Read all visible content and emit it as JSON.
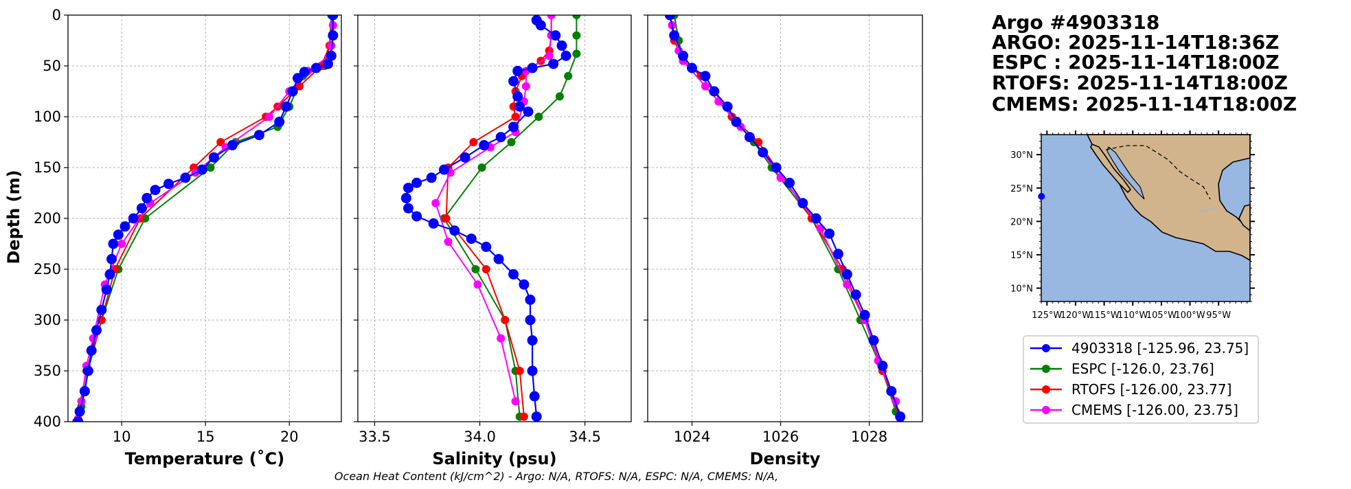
{
  "chart_data": {
    "type": "line",
    "colors": {
      "argo": "#0000ff",
      "espc": "#008000",
      "rtofs": "#ff0000",
      "cmems": "#ff00ff",
      "ocean": "#98b7e1",
      "land": "#d2b48c"
    },
    "info_lines": [
      "Argo #4903318",
      "ARGO: 2025-11-14T18:36Z",
      "ESPC : 2025-11-14T18:00Z",
      "RTOFS: 2025-11-14T18:00Z",
      "CMEMS: 2025-11-14T18:00Z"
    ],
    "footer": "Ocean Heat Content (kJ/cm^2) - Argo: N/A,  RTOFS: N/A,  ESPC: N/A,  CMEMS: N/A,",
    "ylabel": "Depth (m)",
    "ylim": [
      0,
      400
    ],
    "yticks": [
      0,
      50,
      100,
      150,
      200,
      250,
      300,
      350,
      400
    ],
    "panels": [
      {
        "key": "temp",
        "xlabel": "Temperature (˚C)",
        "xlim": [
          6.8,
          23.1
        ],
        "xticks": [
          10,
          15,
          20
        ],
        "argo": [
          [
            22.6,
            0
          ],
          [
            22.6,
            20
          ],
          [
            22.5,
            40
          ],
          [
            22.3,
            48
          ],
          [
            21.6,
            52
          ],
          [
            20.9,
            56
          ],
          [
            20.5,
            62
          ],
          [
            20.2,
            75
          ],
          [
            19.8,
            90
          ],
          [
            19.4,
            105
          ],
          [
            18.2,
            118
          ],
          [
            16.6,
            128
          ],
          [
            15.5,
            140
          ],
          [
            14.8,
            152
          ],
          [
            13.8,
            160
          ],
          [
            12.8,
            166
          ],
          [
            12.0,
            172
          ],
          [
            11.5,
            180
          ],
          [
            11.2,
            190
          ],
          [
            10.7,
            200
          ],
          [
            10.2,
            208
          ],
          [
            9.8,
            216
          ],
          [
            9.5,
            225
          ],
          [
            9.4,
            240
          ],
          [
            9.3,
            255
          ],
          [
            9.1,
            270
          ],
          [
            8.8,
            290
          ],
          [
            8.5,
            310
          ],
          [
            8.2,
            330
          ],
          [
            8.0,
            350
          ],
          [
            7.8,
            370
          ],
          [
            7.5,
            390
          ],
          [
            7.4,
            400
          ]
        ],
        "espc": [
          [
            22.5,
            0
          ],
          [
            22.4,
            30
          ],
          [
            22.1,
            50
          ],
          [
            20.8,
            60
          ],
          [
            20.0,
            90
          ],
          [
            19.3,
            110
          ],
          [
            16.8,
            125
          ],
          [
            15.3,
            150
          ],
          [
            11.4,
            200
          ],
          [
            9.8,
            250
          ],
          [
            8.8,
            300
          ],
          [
            8.0,
            350
          ],
          [
            7.6,
            385
          ]
        ],
        "rtofs": [
          [
            22.6,
            0
          ],
          [
            22.4,
            30
          ],
          [
            21.9,
            50
          ],
          [
            20.6,
            70
          ],
          [
            19.3,
            90
          ],
          [
            18.6,
            100
          ],
          [
            15.9,
            125
          ],
          [
            14.3,
            150
          ],
          [
            11.1,
            200
          ],
          [
            9.6,
            250
          ],
          [
            8.8,
            300
          ],
          [
            7.9,
            350
          ],
          [
            7.3,
            400
          ]
        ],
        "cmems": [
          [
            22.6,
            0
          ],
          [
            22.6,
            10
          ],
          [
            22.6,
            20
          ],
          [
            22.5,
            30
          ],
          [
            22.4,
            40
          ],
          [
            21.1,
            55
          ],
          [
            20.0,
            75
          ],
          [
            18.8,
            100
          ],
          [
            16.2,
            130
          ],
          [
            14.4,
            155
          ],
          [
            11.7,
            185
          ],
          [
            10.0,
            225
          ],
          [
            9.0,
            265
          ],
          [
            8.3,
            318
          ],
          [
            7.9,
            345
          ],
          [
            7.6,
            380
          ],
          [
            7.4,
            397
          ]
        ]
      },
      {
        "key": "sal",
        "xlabel": "Salinity (psu)",
        "xlim": [
          33.42,
          34.72
        ],
        "xticks": [
          33.5,
          34.0,
          34.5
        ],
        "xticklabels": [
          "33.5",
          "34.0",
          "34.5"
        ],
        "argo": [
          [
            34.27,
            5
          ],
          [
            34.29,
            10
          ],
          [
            34.36,
            20
          ],
          [
            34.39,
            30
          ],
          [
            34.41,
            40
          ],
          [
            34.35,
            48
          ],
          [
            34.25,
            52
          ],
          [
            34.18,
            55
          ],
          [
            34.16,
            65
          ],
          [
            34.18,
            80
          ],
          [
            34.19,
            90
          ],
          [
            34.23,
            95
          ],
          [
            34.16,
            110
          ],
          [
            34.1,
            120
          ],
          [
            34.02,
            128
          ],
          [
            33.93,
            140
          ],
          [
            33.83,
            152
          ],
          [
            33.77,
            160
          ],
          [
            33.7,
            165
          ],
          [
            33.66,
            170
          ],
          [
            33.65,
            180
          ],
          [
            33.66,
            190
          ],
          [
            33.7,
            198
          ],
          [
            33.78,
            205
          ],
          [
            33.88,
            212
          ],
          [
            33.96,
            220
          ],
          [
            34.03,
            228
          ],
          [
            34.09,
            240
          ],
          [
            34.16,
            255
          ],
          [
            34.21,
            265
          ],
          [
            34.24,
            280
          ],
          [
            34.24,
            300
          ],
          [
            34.25,
            320
          ],
          [
            34.25,
            350
          ],
          [
            34.26,
            375
          ],
          [
            34.27,
            395
          ]
        ],
        "espc": [
          [
            34.46,
            0
          ],
          [
            34.46,
            20
          ],
          [
            34.46,
            38
          ],
          [
            34.42,
            60
          ],
          [
            34.38,
            80
          ],
          [
            34.28,
            100
          ],
          [
            34.15,
            125
          ],
          [
            34.01,
            150
          ],
          [
            33.83,
            200
          ],
          [
            33.98,
            250
          ],
          [
            34.12,
            300
          ],
          [
            34.17,
            350
          ],
          [
            34.19,
            395
          ]
        ],
        "rtofs": [
          [
            34.34,
            0
          ],
          [
            34.34,
            20
          ],
          [
            34.33,
            35
          ],
          [
            34.29,
            45
          ],
          [
            34.2,
            60
          ],
          [
            34.17,
            75
          ],
          [
            34.16,
            90
          ],
          [
            34.17,
            100
          ],
          [
            33.97,
            125
          ],
          [
            33.85,
            150
          ],
          [
            33.84,
            200
          ],
          [
            34.03,
            250
          ],
          [
            34.12,
            300
          ],
          [
            34.19,
            350
          ],
          [
            34.21,
            395
          ]
        ],
        "cmems": [
          [
            34.34,
            0
          ],
          [
            34.34,
            20
          ],
          [
            34.33,
            40
          ],
          [
            34.22,
            55
          ],
          [
            34.22,
            70
          ],
          [
            34.21,
            85
          ],
          [
            34.17,
            115
          ],
          [
            34.05,
            130
          ],
          [
            33.86,
            155
          ],
          [
            33.79,
            185
          ],
          [
            33.85,
            223
          ],
          [
            33.99,
            265
          ],
          [
            34.1,
            318
          ],
          [
            34.17,
            380
          ]
        ]
      },
      {
        "key": "dens",
        "xlabel": "Density",
        "xlim": [
          1023.0,
          1029.2
        ],
        "xticks": [
          1024,
          1026,
          1028
        ],
        "argo": [
          [
            1023.5,
            0
          ],
          [
            1023.6,
            20
          ],
          [
            1023.8,
            40
          ],
          [
            1024.0,
            52
          ],
          [
            1024.3,
            60
          ],
          [
            1024.5,
            75
          ],
          [
            1024.8,
            90
          ],
          [
            1025.0,
            105
          ],
          [
            1025.3,
            120
          ],
          [
            1025.6,
            135
          ],
          [
            1025.9,
            150
          ],
          [
            1026.2,
            165
          ],
          [
            1026.5,
            185
          ],
          [
            1026.8,
            200
          ],
          [
            1027.1,
            215
          ],
          [
            1027.3,
            235
          ],
          [
            1027.5,
            255
          ],
          [
            1027.7,
            275
          ],
          [
            1027.9,
            295
          ],
          [
            1028.1,
            320
          ],
          [
            1028.3,
            345
          ],
          [
            1028.5,
            370
          ],
          [
            1028.7,
            395
          ]
        ],
        "espc": [
          [
            1023.6,
            0
          ],
          [
            1023.7,
            25
          ],
          [
            1023.8,
            45
          ],
          [
            1024.2,
            60
          ],
          [
            1024.5,
            75
          ],
          [
            1024.9,
            100
          ],
          [
            1025.4,
            125
          ],
          [
            1025.8,
            150
          ],
          [
            1026.7,
            200
          ],
          [
            1027.3,
            250
          ],
          [
            1027.8,
            300
          ],
          [
            1028.3,
            350
          ],
          [
            1028.6,
            390
          ]
        ],
        "rtofs": [
          [
            1023.5,
            0
          ],
          [
            1023.6,
            25
          ],
          [
            1023.8,
            45
          ],
          [
            1024.2,
            60
          ],
          [
            1024.5,
            75
          ],
          [
            1024.9,
            100
          ],
          [
            1025.5,
            125
          ],
          [
            1025.9,
            150
          ],
          [
            1026.7,
            200
          ],
          [
            1027.4,
            250
          ],
          [
            1027.9,
            300
          ],
          [
            1028.3,
            350
          ],
          [
            1028.7,
            397
          ]
        ],
        "cmems": [
          [
            1023.5,
            0
          ],
          [
            1023.55,
            10
          ],
          [
            1023.6,
            20
          ],
          [
            1023.7,
            35
          ],
          [
            1023.8,
            45
          ],
          [
            1024.3,
            70
          ],
          [
            1024.6,
            85
          ],
          [
            1025.1,
            110
          ],
          [
            1025.6,
            135
          ],
          [
            1026.0,
            160
          ],
          [
            1026.5,
            185
          ],
          [
            1026.9,
            210
          ],
          [
            1027.5,
            265
          ],
          [
            1027.9,
            300
          ],
          [
            1028.2,
            340
          ],
          [
            1028.6,
            380
          ],
          [
            1028.7,
            397
          ]
        ]
      }
    ],
    "map": {
      "lat_ticks": [
        30,
        25,
        20,
        15,
        10
      ],
      "lat_labels": [
        "30°N",
        "25°N",
        "20°N",
        "15°N",
        "10°N"
      ],
      "lon_ticks": [
        -125,
        -120,
        -115,
        -110,
        -105,
        -100,
        -95
      ],
      "lon_labels": [
        "125°W",
        "120°W",
        "115°W",
        "110°W",
        "105°W",
        "100°W",
        "95°W"
      ],
      "lon_range": [
        -126.0,
        -89.5
      ],
      "lat_range": [
        8.0,
        33.0
      ],
      "float_position": [
        -125.96,
        23.75
      ]
    },
    "legend": [
      {
        "key": "argo",
        "label": "4903318 [-125.96, 23.75]"
      },
      {
        "key": "espc",
        "label": "ESPC [-126.0, 23.76]"
      },
      {
        "key": "rtofs",
        "label": "RTOFS [-126.00, 23.77]"
      },
      {
        "key": "cmems",
        "label": "CMEMS [-126.00, 23.75]"
      }
    ]
  }
}
